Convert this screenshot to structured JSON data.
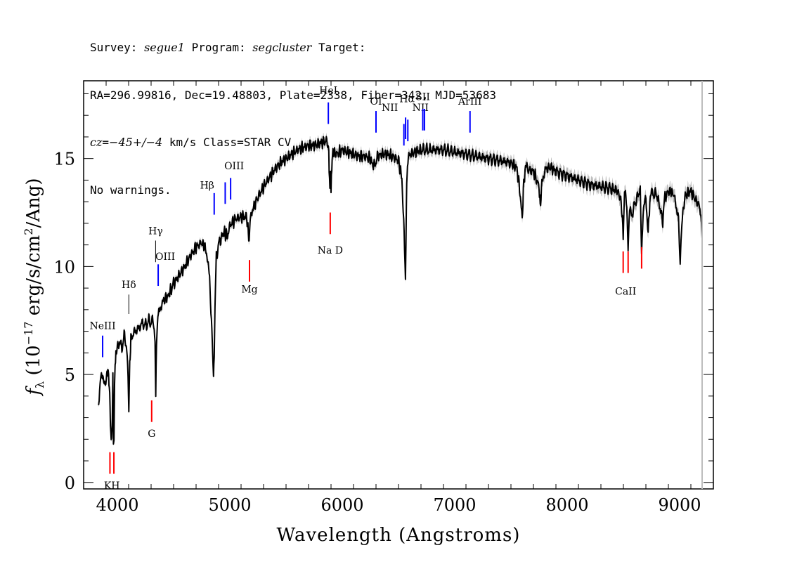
{
  "header": {
    "survey_label": "Survey: ",
    "survey": "segue1",
    "program_label": " Program: ",
    "program": "segcluster",
    "target_label": " Target:",
    "line2": "RA=296.99816, Dec=19.48803, Plate=2338, Fiber=342, MJD=53683",
    "cz_label": "cz",
    "cz_eq": "=",
    "cz_value": "−45+/−4",
    "cz_rest": " km/s Class=STAR CV",
    "line4": "No warnings."
  },
  "colors": {
    "spectrum": "#000000",
    "error_band": "#bdbdbd",
    "emission_marker": "#0000ff",
    "absorption_marker": "#ff0000",
    "neutral_marker": "#000000",
    "end_line": "#bdbdbd"
  },
  "chart_data": {
    "type": "line",
    "title": "",
    "xlabel": "Wavelength (Angstroms)",
    "ylabel_parts": {
      "f": "f",
      "sub": "λ",
      "pre": " (10",
      "exp1": "−17",
      "mid": " erg/s/cm",
      "exp2": "2",
      "post": "/Ang)"
    },
    "xlim": [
      3700,
      9300
    ],
    "ylim": [
      -0.3,
      18.6
    ],
    "x_ticks": [
      4000,
      5000,
      6000,
      7000,
      8000,
      9000
    ],
    "y_ticks": [
      0,
      5,
      10,
      15
    ],
    "x_end_line": 9200,
    "series": [
      {
        "x": [
          3830,
          3850,
          3870,
          3890,
          3905,
          3915,
          3925,
          3935,
          3945,
          3955,
          3960,
          3965,
          3970,
          3975,
          3980,
          3990,
          4000,
          4020,
          4040,
          4060,
          4080,
          4095,
          4102,
          4110,
          4120,
          4140,
          4160,
          4180,
          4200,
          4220,
          4240,
          4260,
          4280,
          4300,
          4320,
          4335,
          4341,
          4348,
          4360,
          4380,
          4400,
          4420,
          4450,
          4480,
          4500,
          4550,
          4600,
          4650,
          4700,
          4750,
          4780,
          4800,
          4820,
          4840,
          4855,
          4861,
          4868,
          4880,
          4900,
          4920,
          4950,
          4980,
          5000,
          5050,
          5100,
          5150,
          5172,
          5180,
          5200,
          5250,
          5300,
          5350,
          5400,
          5450,
          5500,
          5550,
          5600,
          5650,
          5700,
          5750,
          5800,
          5850,
          5870,
          5880,
          5890,
          5895,
          5900,
          5910,
          5920,
          5950,
          6000,
          6050,
          6100,
          6150,
          6200,
          6250,
          6280,
          6300,
          6320,
          6350,
          6400,
          6450,
          6500,
          6530,
          6550,
          6562,
          6570,
          6580,
          6600,
          6650,
          6700,
          6800,
          6900,
          7000,
          7100,
          7200,
          7300,
          7400,
          7500,
          7550,
          7580,
          7600,
          7610,
          7625,
          7650,
          7700,
          7750,
          7760,
          7775,
          7800,
          7850,
          7900,
          8000,
          8100,
          8200,
          8300,
          8400,
          8450,
          8480,
          8498,
          8510,
          8530,
          8542,
          8555,
          8580,
          8620,
          8650,
          8662,
          8675,
          8700,
          8720,
          8735,
          8760,
          8800,
          8850,
          8870,
          8890,
          8920,
          8950,
          8990,
          9005,
          9020,
          9050,
          9100,
          9150,
          9180,
          9200
        ],
        "y": [
          3.5,
          4.8,
          5.0,
          4.4,
          5.0,
          5.2,
          4.8,
          3.5,
          1.7,
          3.0,
          4.9,
          1.8,
          2.2,
          4.6,
          5.6,
          6.0,
          6.3,
          6.5,
          6.2,
          6.8,
          6.4,
          5.0,
          3.3,
          5.5,
          6.6,
          6.9,
          7.0,
          7.1,
          7.2,
          7.4,
          7.3,
          7.3,
          7.5,
          7.4,
          7.5,
          6.5,
          3.9,
          6.5,
          7.8,
          8.0,
          8.3,
          8.5,
          8.6,
          9.0,
          9.2,
          9.6,
          10.0,
          10.5,
          10.9,
          11.1,
          10.9,
          10.4,
          9.5,
          7.0,
          5.0,
          5.9,
          8.0,
          10.5,
          11.0,
          11.3,
          11.6,
          11.4,
          11.9,
          12.2,
          12.3,
          12.3,
          11.2,
          12.1,
          12.6,
          13.2,
          13.7,
          14.1,
          14.5,
          14.8,
          15.0,
          15.2,
          15.4,
          15.5,
          15.6,
          15.6,
          15.7,
          15.8,
          15.7,
          15.3,
          13.4,
          14.3,
          13.4,
          15.1,
          15.3,
          15.2,
          15.4,
          15.3,
          15.2,
          15.1,
          15.1,
          15.0,
          14.6,
          14.9,
          15.1,
          15.2,
          15.2,
          15.1,
          14.9,
          14.1,
          11.5,
          9.4,
          13.0,
          14.8,
          15.2,
          15.3,
          15.4,
          15.4,
          15.4,
          15.3,
          15.2,
          15.1,
          15.0,
          14.9,
          14.8,
          14.6,
          13.5,
          12.1,
          13.5,
          14.5,
          14.5,
          14.4,
          13.7,
          12.8,
          13.8,
          14.5,
          14.6,
          14.4,
          14.2,
          14.0,
          13.8,
          13.7,
          13.6,
          13.5,
          13.0,
          11.5,
          13.5,
          12.9,
          10.8,
          12.5,
          12.5,
          13.2,
          13.5,
          10.8,
          12.5,
          13.2,
          11.5,
          13.1,
          13.4,
          13.3,
          12.1,
          13.3,
          13.4,
          13.5,
          13.3,
          12.2,
          10.1,
          12.1,
          13.3,
          13.5,
          13.0,
          12.8,
          11.3
        ]
      }
    ],
    "markers": [
      {
        "label": "NeIII",
        "x": 3869,
        "type": "emission",
        "label_y": 7.1,
        "y1": 5.8,
        "y2": 6.8
      },
      {
        "label": "Hδ",
        "x": 4102,
        "type": "neutral",
        "label_y": 9.0,
        "y1": 7.8,
        "y2": 8.7
      },
      {
        "label": "Hγ",
        "x": 4340,
        "type": "neutral",
        "label_y": 11.5,
        "y1": 10.2,
        "y2": 11.2
      },
      {
        "label": "OIII",
        "x": 4363,
        "type": "emission",
        "label_y": 10.3,
        "y1": 9.1,
        "y2": 10.1,
        "label_dx": 10
      },
      {
        "label": "Hβ",
        "x": 4861,
        "type": "emission",
        "label_y": 13.6,
        "y1": 12.4,
        "y2": 13.4,
        "label_dx": -10
      },
      {
        "label": "",
        "x": 4959,
        "type": "emission",
        "label_y": 0,
        "y1": 12.9,
        "y2": 13.9
      },
      {
        "label": "OIII",
        "x": 5007,
        "type": "emission",
        "label_y": 14.5,
        "y1": 13.1,
        "y2": 14.1,
        "label_dx": 5
      },
      {
        "label": "HeI",
        "x": 5876,
        "type": "emission",
        "label_y": 18.0,
        "y1": 16.6,
        "y2": 17.6
      },
      {
        "label": "OI",
        "x": 6300,
        "type": "emission",
        "label_y": 17.5,
        "y1": 16.2,
        "y2": 17.2
      },
      {
        "label": "NII",
        "x": 6548,
        "type": "emission",
        "label_y": 17.2,
        "y1": 15.6,
        "y2": 16.6,
        "label_dx": -20
      },
      {
        "label": "Hα",
        "x": 6563,
        "type": "emission",
        "label_y": 17.6,
        "y1": 15.9,
        "y2": 16.9,
        "label_dx": 2
      },
      {
        "label": "NII",
        "x": 6583,
        "type": "emission",
        "label_y": 17.2,
        "y1": 15.8,
        "y2": 16.8,
        "label_dx": 18
      },
      {
        "label": "SII",
        "x": 6716,
        "type": "emission",
        "label_y": 17.7,
        "y1": 16.3,
        "y2": 17.3
      },
      {
        "label": "",
        "x": 6731,
        "type": "emission",
        "label_y": 0,
        "y1": 16.3,
        "y2": 17.3
      },
      {
        "label": "ArIII",
        "x": 7136,
        "type": "emission",
        "label_y": 17.5,
        "y1": 16.2,
        "y2": 17.2
      },
      {
        "label": "Na D",
        "x": 5893,
        "type": "absorption",
        "label_y": 10.6,
        "y1": 11.5,
        "y2": 12.5
      },
      {
        "label": "Mg",
        "x": 5175,
        "type": "absorption",
        "label_y": 8.8,
        "y1": 9.3,
        "y2": 10.3
      },
      {
        "label": "G",
        "x": 4305,
        "type": "absorption",
        "label_y": 2.1,
        "y1": 2.8,
        "y2": 3.8
      },
      {
        "label": "",
        "x": 3934,
        "type": "absorption",
        "label_y": 0,
        "y1": 0.4,
        "y2": 1.4
      },
      {
        "label": "",
        "x": 3969,
        "type": "absorption",
        "label_y": 0,
        "y1": 0.4,
        "y2": 1.4
      },
      {
        "label": "KH",
        "x": 3951,
        "type": "label",
        "label_y": -0.3,
        "y1": 0,
        "y2": 0
      },
      {
        "label": "",
        "x": 8498,
        "type": "absorption",
        "label_y": 0,
        "y1": 9.7,
        "y2": 10.7
      },
      {
        "label": "",
        "x": 8542,
        "type": "absorption",
        "label_y": 0,
        "y1": 9.7,
        "y2": 10.7
      },
      {
        "label": "",
        "x": 8662,
        "type": "absorption",
        "label_y": 0,
        "y1": 9.9,
        "y2": 10.9
      },
      {
        "label": "CaII",
        "x": 8520,
        "type": "label",
        "label_y": 8.7,
        "y1": 0,
        "y2": 0
      }
    ]
  }
}
